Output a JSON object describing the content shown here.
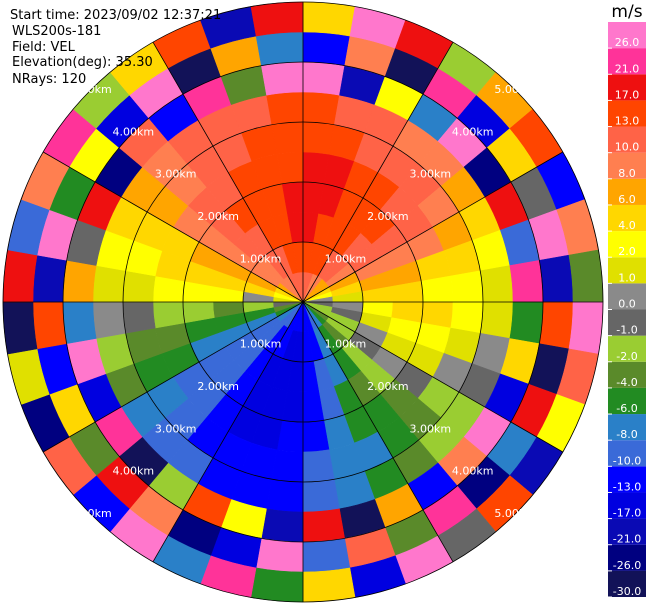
{
  "header": {
    "start_time": "Start time: 2023/09/02 12:37:21",
    "instrument": "WLS200s-181",
    "field": "Field: VEL",
    "elevation": "Elevation(deg): 35.30",
    "nrays": "NRays: 120"
  },
  "chart_data": {
    "type": "ppi",
    "azimuths": [
      0,
      10,
      20,
      30,
      40,
      50,
      60,
      70,
      80,
      90,
      100,
      110,
      120,
      130,
      140,
      150,
      160,
      170,
      180,
      190,
      200,
      210,
      220,
      230,
      240,
      250,
      260,
      270,
      280,
      290,
      300,
      310,
      320,
      330,
      340,
      350
    ],
    "ranges": [
      0,
      0.5,
      1,
      1.5,
      2,
      2.5,
      3,
      3.5,
      4,
      4.5,
      5
    ],
    "rlim": [
      0,
      5
    ],
    "rings": [
      {
        "value": 1,
        "label": "1.00km"
      },
      {
        "value": 2,
        "label": "2.00km"
      },
      {
        "value": 3,
        "label": "3.00km"
      },
      {
        "value": 4,
        "label": "4.00km"
      },
      {
        "value": 5,
        "label": "5.00km"
      }
    ],
    "values": [
      [
        10,
        13,
        17,
        17,
        17,
        13,
        13,
        26,
        -13,
        4
      ],
      [
        10,
        13,
        13,
        17,
        17,
        13,
        10,
        -21,
        8,
        26
      ],
      [
        8,
        13,
        13,
        13,
        13,
        10,
        10,
        2,
        -30,
        17
      ],
      [
        8,
        10,
        13,
        13,
        13,
        10,
        8,
        -8,
        21,
        -2
      ],
      [
        6,
        10,
        10,
        13,
        10,
        10,
        8,
        26,
        -17,
        6
      ],
      [
        6,
        8,
        10,
        10,
        10,
        8,
        6,
        -26,
        4,
        13
      ],
      [
        4,
        6,
        8,
        8,
        8,
        6,
        4,
        17,
        -1,
        -13
      ],
      [
        2,
        4,
        6,
        6,
        4,
        4,
        2,
        -10,
        26,
        8
      ],
      [
        0,
        1,
        4,
        4,
        2,
        2,
        1,
        21,
        -21,
        -4
      ],
      [
        -1,
        0,
        2,
        4,
        4,
        2,
        1,
        -6,
        13,
        26
      ],
      [
        -2,
        -1,
        1,
        2,
        2,
        1,
        0,
        4,
        -30,
        10
      ],
      [
        -2,
        -2,
        0,
        1,
        1,
        0,
        -1,
        -17,
        17,
        2
      ],
      [
        -4,
        -2,
        -1,
        0,
        -1,
        -2,
        -2,
        26,
        -8,
        -21
      ],
      [
        -6,
        -4,
        -2,
        -2,
        -4,
        -4,
        -2,
        8,
        -26,
        13
      ],
      [
        -8,
        -6,
        -6,
        -4,
        -6,
        -6,
        -4,
        -13,
        21,
        -1
      ],
      [
        -10,
        -8,
        -8,
        -6,
        -6,
        -8,
        -6,
        6,
        -4,
        26
      ],
      [
        -13,
        -13,
        -10,
        -10,
        -8,
        -8,
        -8,
        -30,
        10,
        -17
      ],
      [
        -13,
        -13,
        -13,
        -13,
        -13,
        -10,
        -10,
        17,
        -10,
        4
      ],
      [
        -13,
        -17,
        -17,
        -17,
        -13,
        -13,
        -13,
        -21,
        26,
        -6
      ],
      [
        -13,
        -17,
        -17,
        -17,
        -17,
        -13,
        -13,
        2,
        -17,
        21
      ],
      [
        -13,
        -13,
        -17,
        -17,
        -17,
        -13,
        -13,
        13,
        -26,
        -8
      ],
      [
        -10,
        -13,
        -13,
        -13,
        -13,
        -13,
        -10,
        -2,
        8,
        26
      ],
      [
        -10,
        -10,
        -10,
        -10,
        -10,
        -10,
        -10,
        -30,
        17,
        -13
      ],
      [
        -8,
        -10,
        -10,
        -10,
        -10,
        -8,
        -8,
        21,
        -4,
        10
      ],
      [
        -6,
        -8,
        -8,
        -8,
        -6,
        -6,
        -4,
        -17,
        4,
        -26
      ],
      [
        -4,
        -6,
        -6,
        -6,
        -4,
        -4,
        -2,
        26,
        -13,
        1
      ],
      [
        -1,
        -2,
        -4,
        -2,
        -2,
        -1,
        0,
        -8,
        13,
        -30
      ],
      [
        1,
        0,
        2,
        2,
        2,
        1,
        1,
        6,
        -21,
        17
      ],
      [
        2,
        4,
        4,
        4,
        4,
        2,
        2,
        -1,
        26,
        -10
      ],
      [
        4,
        6,
        6,
        6,
        4,
        4,
        4,
        17,
        -6,
        8
      ],
      [
        6,
        8,
        8,
        8,
        8,
        6,
        6,
        -26,
        2,
        21
      ],
      [
        8,
        8,
        10,
        10,
        10,
        8,
        8,
        10,
        -17,
        -2
      ],
      [
        8,
        10,
        10,
        13,
        10,
        10,
        10,
        -13,
        26,
        4
      ],
      [
        10,
        10,
        13,
        13,
        13,
        10,
        10,
        21,
        -30,
        13
      ],
      [
        10,
        13,
        13,
        13,
        13,
        13,
        10,
        -4,
        6,
        -21
      ],
      [
        10,
        13,
        17,
        17,
        13,
        13,
        13,
        26,
        -8,
        17
      ]
    ],
    "colorbar": {
      "title": "m/s",
      "bounds": [
        -30,
        -26,
        -21,
        -17,
        -13,
        -10,
        -8,
        -6,
        -4,
        -2,
        -1,
        0,
        1,
        2,
        4,
        6,
        8,
        10,
        13,
        17,
        21,
        26,
        30
      ],
      "colors": [
        "#121258",
        "#000080",
        "#0a0ab4",
        "#0000e0",
        "#0000ff",
        "#3a6ad8",
        "#2a80c8",
        "#228b22",
        "#5a8a2a",
        "#9acd32",
        "#666666",
        "#8a8a8a",
        "#e0e000",
        "#ffff00",
        "#ffd700",
        "#ffa500",
        "#ff7f50",
        "#ff6347",
        "#ff4500",
        "#ee1010",
        "#ff3399",
        "#ff77cc"
      ],
      "ticks": [
        {
          "value": 26,
          "label": "26.0"
        },
        {
          "value": 21,
          "label": "21.0"
        },
        {
          "value": 17,
          "label": "17.0"
        },
        {
          "value": 13,
          "label": "13.0"
        },
        {
          "value": 10,
          "label": "10.0"
        },
        {
          "value": 8,
          "label": "8.0"
        },
        {
          "value": 6,
          "label": "6.0"
        },
        {
          "value": 4,
          "label": "4.0"
        },
        {
          "value": 2,
          "label": "2.0"
        },
        {
          "value": 1,
          "label": "1.0"
        },
        {
          "value": 0,
          "label": "0.0"
        },
        {
          "value": -1,
          "label": "-1.0"
        },
        {
          "value": -2,
          "label": "-2.0"
        },
        {
          "value": -4,
          "label": "-4.0"
        },
        {
          "value": -6,
          "label": "-6.0"
        },
        {
          "value": -8,
          "label": "-8.0"
        },
        {
          "value": -10,
          "label": "-10.0"
        },
        {
          "value": -13,
          "label": "-13.0"
        },
        {
          "value": -17,
          "label": "-17.0"
        },
        {
          "value": -21,
          "label": "-21.0"
        },
        {
          "value": -26,
          "label": "-26.0"
        },
        {
          "value": -30,
          "label": "-30.0"
        }
      ]
    }
  }
}
